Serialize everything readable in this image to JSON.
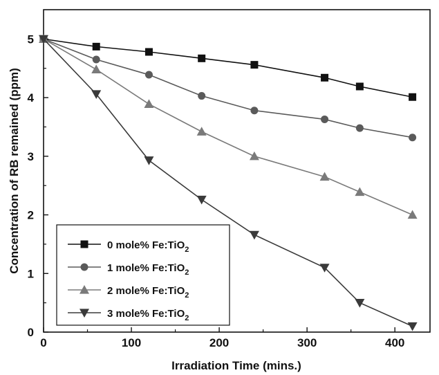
{
  "chart_data": {
    "type": "line",
    "title": "",
    "xlabel": "Irradiation Time (mins.)",
    "ylabel": "Concentration of RB remained (ppm)",
    "xlim": [
      0,
      440
    ],
    "ylim": [
      0,
      5.5
    ],
    "xticks": [
      0,
      100,
      200,
      300,
      400
    ],
    "yticks": [
      0,
      1,
      2,
      3,
      4,
      5
    ],
    "grid": false,
    "legend_position": "bottom-left",
    "series": [
      {
        "name_prefix": "0 mole% Fe:TiO",
        "name_subscript": "2",
        "marker": "square",
        "color": "#111111",
        "x": [
          0,
          60,
          120,
          180,
          240,
          320,
          360,
          420
        ],
        "values": [
          5.0,
          4.87,
          4.78,
          4.67,
          4.56,
          4.34,
          4.19,
          4.01
        ]
      },
      {
        "name_prefix": "1 mole% Fe:TiO",
        "name_subscript": "2",
        "marker": "circle",
        "color": "#5a5a5a",
        "x": [
          0,
          60,
          120,
          180,
          240,
          320,
          360,
          420
        ],
        "values": [
          5.0,
          4.65,
          4.39,
          4.03,
          3.78,
          3.63,
          3.48,
          3.32
        ]
      },
      {
        "name_prefix": "2 mole% Fe:TiO",
        "name_subscript": "2",
        "marker": "triangle-up",
        "color": "#7a7a7a",
        "x": [
          0,
          60,
          120,
          180,
          240,
          320,
          360,
          420
        ],
        "values": [
          5.0,
          4.48,
          3.89,
          3.42,
          3.0,
          2.65,
          2.39,
          2.0
        ]
      },
      {
        "name_prefix": "3 mole% Fe:TiO",
        "name_subscript": "2",
        "marker": "triangle-down",
        "color": "#3a3a3a",
        "x": [
          0,
          60,
          120,
          180,
          240,
          320,
          360,
          420
        ],
        "values": [
          5.0,
          4.06,
          2.93,
          2.26,
          1.66,
          1.1,
          0.5,
          0.1
        ]
      }
    ]
  }
}
